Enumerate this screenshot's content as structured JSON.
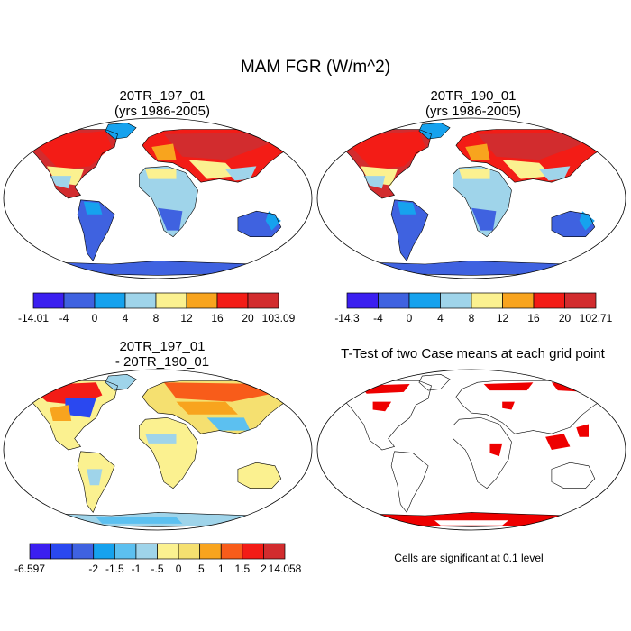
{
  "figure": {
    "title": "MAM FGR (W/m^2)"
  },
  "panels": [
    {
      "id": "p1",
      "title": [
        "20TR_197_01",
        "(yrs 1986-2005)"
      ]
    },
    {
      "id": "p2",
      "title": [
        "20TR_190_01",
        "(yrs 1986-2005)"
      ]
    },
    {
      "id": "p3",
      "title": [
        "20TR_197_01",
        "- 20TR_190_01"
      ]
    },
    {
      "id": "p4",
      "title": [
        "T-Test of two Case means at each grid point"
      ]
    }
  ],
  "colorbars": [
    {
      "id": "cb1",
      "colors": [
        "#3b1ff0",
        "#3f62e0",
        "#16a2ee",
        "#9fd4ea",
        "#fbf190",
        "#f8a41e",
        "#f31c16",
        "#d22c2e"
      ],
      "labels": [
        "-14.01",
        "-4",
        "0",
        "4",
        "8",
        "12",
        "16",
        "20",
        "103.09"
      ]
    },
    {
      "id": "cb2",
      "colors": [
        "#3b1ff0",
        "#3f62e0",
        "#16a2ee",
        "#9fd4ea",
        "#fbf190",
        "#f8a41e",
        "#f31c16",
        "#d22c2e"
      ],
      "labels": [
        "-14.3",
        "-4",
        "0",
        "4",
        "8",
        "12",
        "16",
        "20",
        "102.71"
      ]
    },
    {
      "id": "cb3",
      "colors": [
        "#3b1ff0",
        "#2a48f0",
        "#3f62e0",
        "#16a2ee",
        "#5cc0f0",
        "#9fd4ea",
        "#fbf190",
        "#f5e070",
        "#f8a41e",
        "#f85c1a",
        "#f31c16",
        "#d22c2e"
      ],
      "labels": [
        "-6.597",
        "-2",
        "-1.5",
        "-1",
        "-.5",
        "0",
        ".5",
        "1",
        "1.5",
        "2",
        "14.058"
      ]
    }
  ],
  "note": "Cells are significant at 0.1 level",
  "colors": {
    "map_outline": "#000000",
    "significant": "#ee0000"
  }
}
